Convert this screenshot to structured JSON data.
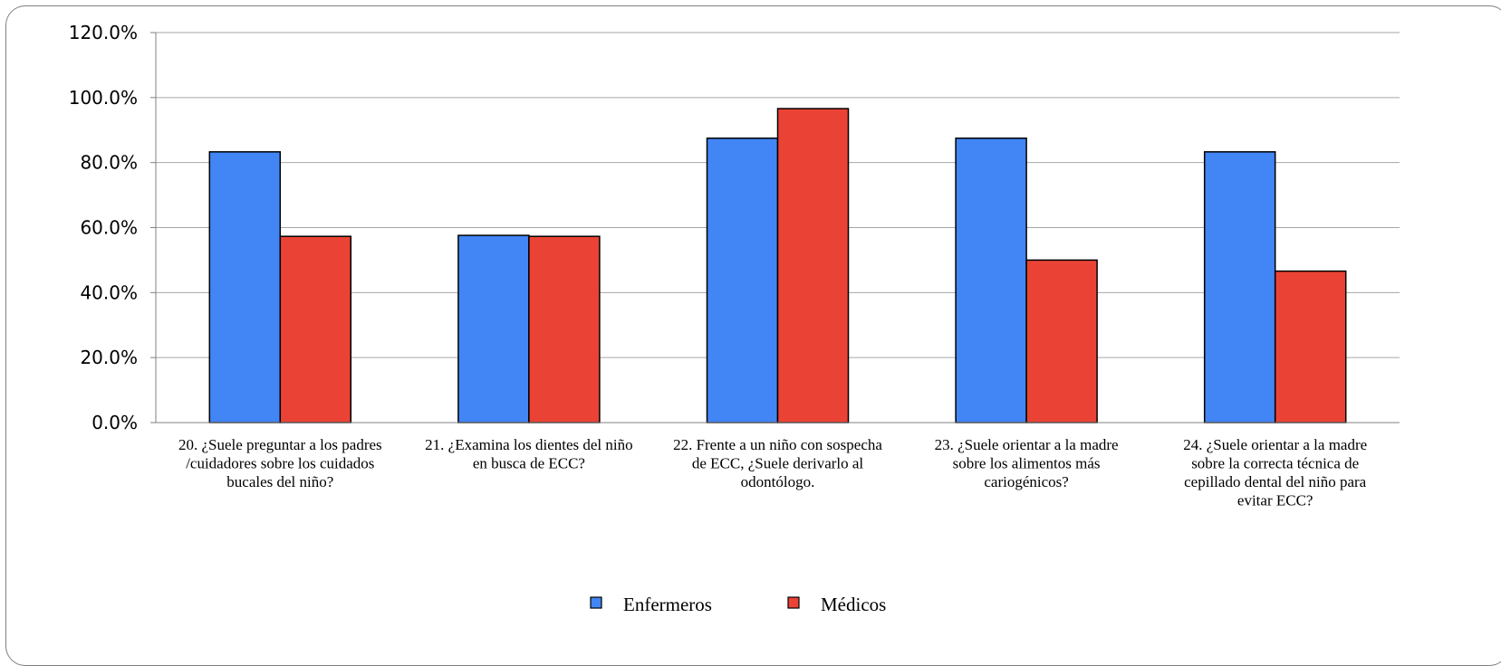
{
  "chart_data": {
    "type": "bar",
    "categories": [
      "20. ¿Suele preguntar a los padres /cuidadores sobre los cuidados bucales del niño?",
      "21. ¿Examina los dientes del niño en busca de ECC?",
      "22. Frente a un niño con sospecha de ECC, ¿Suele derivarlo al odontólogo.",
      "23. ¿Suele orientar a la madre sobre los alimentos más cariogénicos?",
      "24. ¿Suele orientar a la madre sobre la correcta técnica de cepillado dental del niño para evitar ECC?"
    ],
    "category_lines": [
      [
        "20. ¿Suele preguntar a los padres",
        "/cuidadores sobre los cuidados",
        "bucales del niño?"
      ],
      [
        "21. ¿Examina los dientes del niño",
        "en busca de ECC?"
      ],
      [
        "22. Frente a un niño con sospecha",
        "de ECC, ¿Suele derivarlo al",
        "odontólogo."
      ],
      [
        "23. ¿Suele orientar a la madre",
        "sobre los alimentos más",
        "cariogénicos?"
      ],
      [
        "24. ¿Suele orientar a la madre",
        "sobre la correcta técnica de",
        "cepillado dental del niño para",
        "evitar ECC?"
      ]
    ],
    "series": [
      {
        "name": "Enfermeros",
        "color": "#4285f4",
        "values": [
          83.3,
          57.6,
          87.5,
          87.5,
          83.3
        ]
      },
      {
        "name": "Médicos",
        "color": "#ea4335",
        "values": [
          57.3,
          57.3,
          96.6,
          50.0,
          46.6
        ]
      }
    ],
    "yticks": [
      "0.0%",
      "20.0%",
      "40.0%",
      "60.0%",
      "80.0%",
      "100.0%",
      "120.0%"
    ],
    "ylim": [
      0,
      120
    ],
    "grid": true,
    "legend_position": "bottom-center",
    "title": "",
    "xlabel": "",
    "ylabel": ""
  }
}
